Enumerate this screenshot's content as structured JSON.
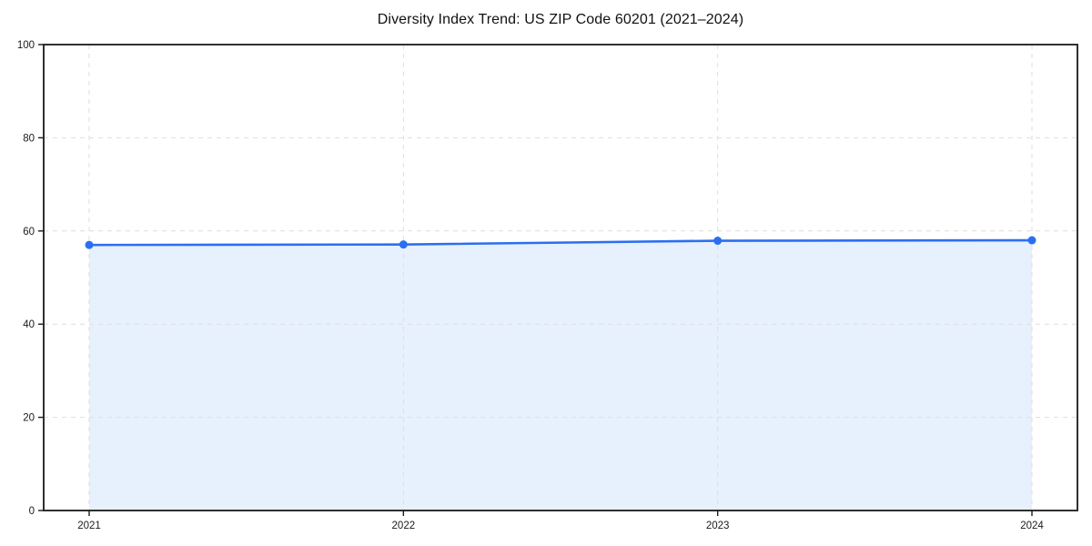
{
  "figure": {
    "background": "#ffffff"
  },
  "chart_data": {
    "type": "area",
    "title": "Diversity Index Trend: US ZIP Code 60201 (2021–2024)",
    "x": [
      2021,
      2022,
      2023,
      2024
    ],
    "xticks": [
      "2021",
      "2022",
      "2023",
      "2024"
    ],
    "series": [
      {
        "name": "Diversity Index",
        "values": [
          57,
          57.1,
          57.9,
          58
        ]
      }
    ],
    "xlabel": "",
    "ylabel": "",
    "ylim": [
      0,
      100
    ],
    "yticks": [
      0,
      20,
      40,
      60,
      80,
      100
    ],
    "grid": true,
    "grid_style": "dashed",
    "legend_position": "none",
    "colors": {
      "line": "#2a6ff2",
      "marker": "#2a6ff2",
      "fill": "#e7f0fd",
      "grid": "#dedede",
      "spine": "#1a1a1a",
      "tick_text": "#1a1a1a",
      "title_text": "#111111"
    }
  }
}
